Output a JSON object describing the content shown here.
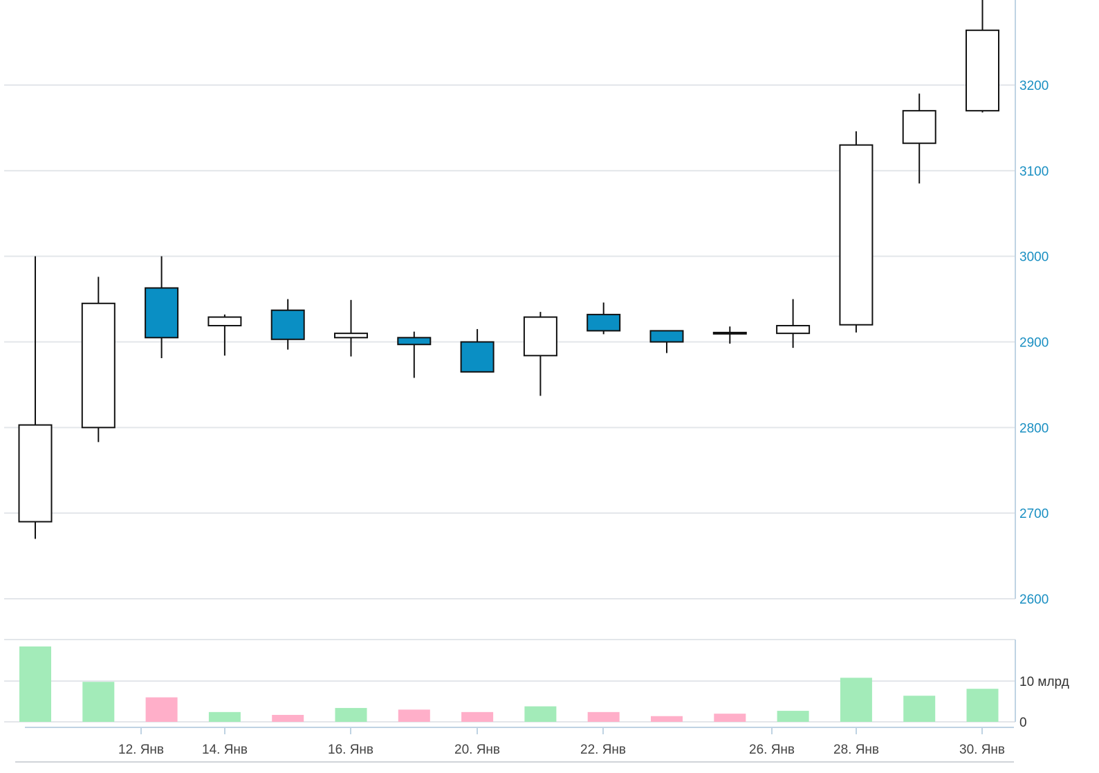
{
  "colors": {
    "up_fill": "#ffffff",
    "down_fill": "#0a8fc4",
    "candle_stroke": "#111111",
    "grid": "#e3e6ea",
    "axis": "#bfd3e3",
    "price_label": "#1a8fc2",
    "volume_up": "#a3ebb9",
    "volume_down": "#ffafc9"
  },
  "chart_data": [
    {
      "type": "candlestick",
      "title": "",
      "y_axis": {
        "ticks": [
          2600,
          2700,
          2800,
          2900,
          3000,
          3100,
          3200
        ],
        "range": [
          2600,
          3300
        ],
        "position": "right"
      },
      "grid": true,
      "x_tick_labels": [
        "12. Янв",
        "14. Янв",
        "16. Янв",
        "20. Янв",
        "22. Янв",
        "26. Янв",
        "28. Янв",
        "30. Янв"
      ],
      "candles": [
        {
          "open": 2690,
          "high": 3000,
          "low": 2670,
          "close": 2803
        },
        {
          "open": 2800,
          "high": 2976,
          "low": 2783,
          "close": 2945
        },
        {
          "open": 2963,
          "high": 3000,
          "low": 2881,
          "close": 2905
        },
        {
          "open": 2919,
          "high": 2932,
          "low": 2884,
          "close": 2929
        },
        {
          "open": 2937,
          "high": 2950,
          "low": 2891,
          "close": 2903
        },
        {
          "open": 2905,
          "high": 2949,
          "low": 2883,
          "close": 2910
        },
        {
          "open": 2905,
          "high": 2912,
          "low": 2858,
          "close": 2897
        },
        {
          "open": 2900,
          "high": 2915,
          "low": 2865,
          "close": 2865
        },
        {
          "open": 2884,
          "high": 2935,
          "low": 2837,
          "close": 2929
        },
        {
          "open": 2932,
          "high": 2946,
          "low": 2909,
          "close": 2913
        },
        {
          "open": 2913,
          "high": 2913,
          "low": 2887,
          "close": 2900
        },
        {
          "open": 2910,
          "high": 2918,
          "low": 2898,
          "close": 2911
        },
        {
          "open": 2910,
          "high": 2950,
          "low": 2893,
          "close": 2919
        },
        {
          "open": 2920,
          "high": 3146,
          "low": 2911,
          "close": 3130
        },
        {
          "open": 3132,
          "high": 3190,
          "low": 3085,
          "close": 3170
        },
        {
          "open": 3170,
          "high": 3300,
          "low": 3168,
          "close": 3264
        }
      ]
    },
    {
      "type": "bar",
      "title": "",
      "y_axis": {
        "ticks": [
          0,
          10
        ],
        "tick_labels": [
          "0",
          "10 млрд"
        ],
        "range": [
          0,
          20
        ],
        "unit": "млрд",
        "position": "right"
      },
      "values": [
        18.5,
        9.8,
        6.0,
        2.4,
        1.7,
        3.4,
        3.0,
        2.4,
        3.8,
        2.4,
        1.4,
        2.0,
        2.7,
        10.8,
        6.4,
        8.1
      ],
      "direction": [
        "up",
        "up",
        "down",
        "up",
        "down",
        "up",
        "down",
        "down",
        "up",
        "down",
        "down",
        "down",
        "up",
        "up",
        "up",
        "up"
      ]
    }
  ]
}
